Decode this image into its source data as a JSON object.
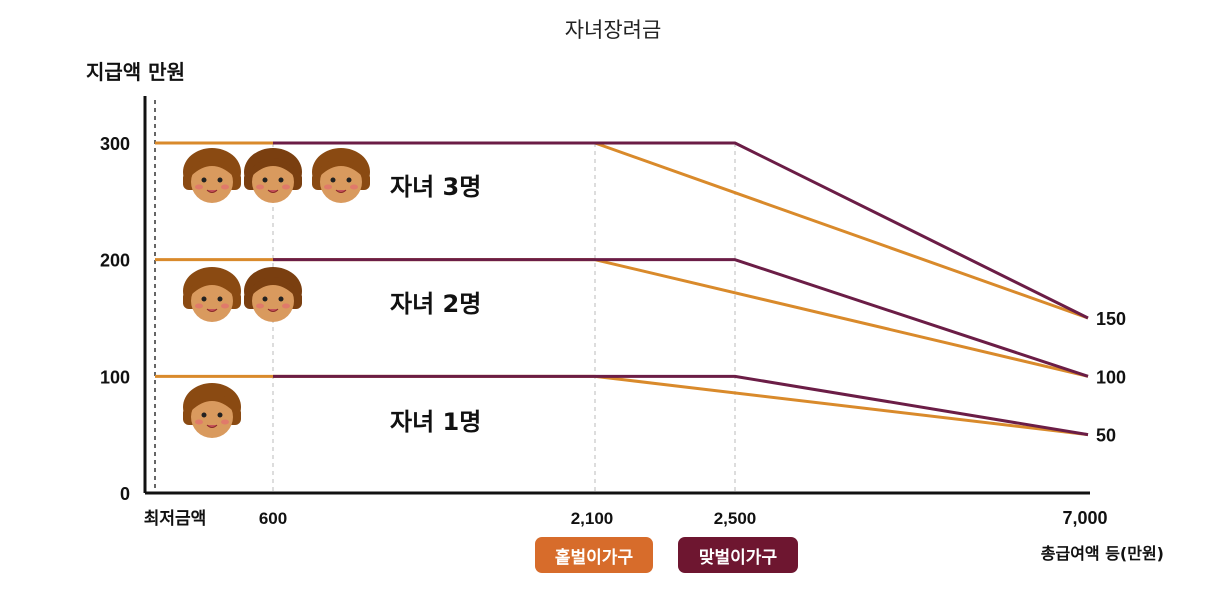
{
  "chart_data": {
    "type": "line",
    "title": "자녀장려금",
    "ylabel": "지급액 만원",
    "xlabel": "총급여액 등(만원)",
    "x_ticks": [
      "최저금액",
      "600",
      "2,100",
      "2,500",
      "7,000"
    ],
    "y_ticks_left": [
      "0",
      "100",
      "200",
      "300"
    ],
    "y_ticks_right": [
      "50",
      "100",
      "150"
    ],
    "ylim": [
      0,
      300
    ],
    "grid": "vertical dashed at 600, 2,100, 2,500",
    "legend": "bottom-center",
    "series": [
      {
        "name": "홑벌이가구",
        "group": "자녀 1명",
        "color": "#d98a2b",
        "x": [
          "최저금액",
          "2,100",
          "7,000"
        ],
        "y": [
          100,
          100,
          50
        ]
      },
      {
        "name": "맞벌이가구",
        "group": "자녀 1명",
        "color": "#6b1d46",
        "x": [
          "600",
          "2,500",
          "7,000"
        ],
        "y": [
          100,
          100,
          50
        ]
      },
      {
        "name": "홑벌이가구",
        "group": "자녀 2명",
        "color": "#d98a2b",
        "x": [
          "최저금액",
          "2,100",
          "7,000"
        ],
        "y": [
          200,
          200,
          100
        ]
      },
      {
        "name": "맞벌이가구",
        "group": "자녀 2명",
        "color": "#6b1d46",
        "x": [
          "600",
          "2,500",
          "7,000"
        ],
        "y": [
          200,
          200,
          100
        ]
      },
      {
        "name": "홑벌이가구",
        "group": "자녀 3명",
        "color": "#d98a2b",
        "x": [
          "최저금액",
          "2,100",
          "7,000"
        ],
        "y": [
          300,
          300,
          150
        ]
      },
      {
        "name": "맞벌이가구",
        "group": "자녀 3명",
        "color": "#6b1d46",
        "x": [
          "600",
          "2,500",
          "7,000"
        ],
        "y": [
          300,
          300,
          150
        ]
      }
    ],
    "annotations": [
      "자녀 3명",
      "자녀 2명",
      "자녀 1명"
    ],
    "children_icons": {
      "자녀 3명": 3,
      "자녀 2명": 2,
      "자녀 1명": 1
    }
  },
  "legend": {
    "single": "홑벌이가구",
    "dual": "맞벌이가구"
  }
}
